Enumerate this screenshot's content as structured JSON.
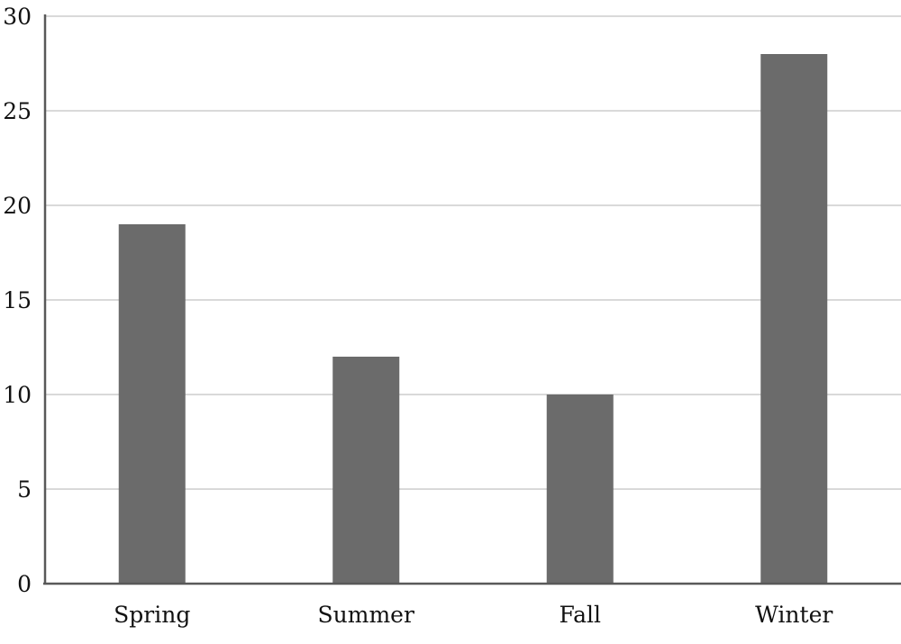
{
  "chart_data": {
    "type": "bar",
    "categories": [
      "Spring",
      "Summer",
      "Fall",
      "Winter"
    ],
    "values": [
      19,
      12,
      10,
      28
    ],
    "title": "",
    "xlabel": "",
    "ylabel": "",
    "ylim": [
      0,
      30
    ],
    "yticks": [
      "0",
      "5",
      "10",
      "15",
      "20",
      "25",
      "30"
    ],
    "grid": true,
    "legend": "none",
    "colors": {
      "bar": "#6b6b6b",
      "gridline": "#d9d9d9",
      "axis": "#595959"
    }
  }
}
